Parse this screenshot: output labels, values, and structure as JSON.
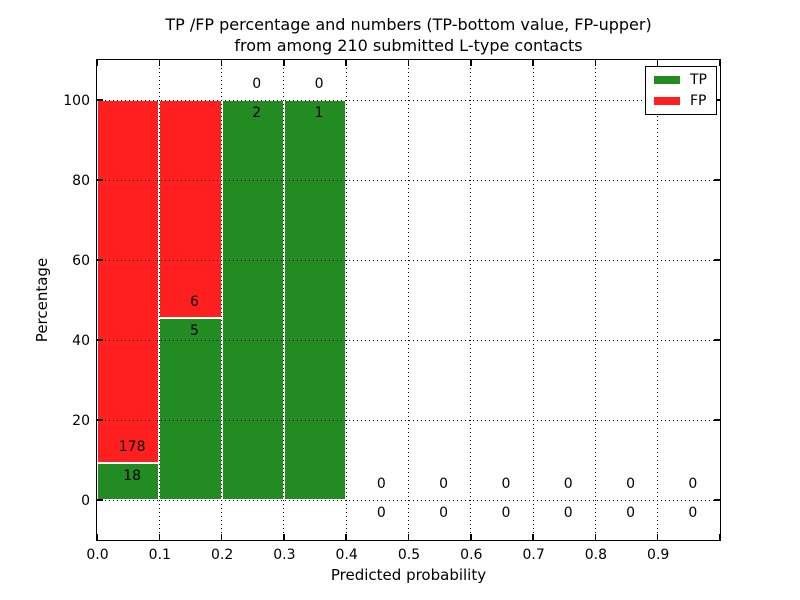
{
  "title": {
    "line1": "TP /FP percentage and numbers (TP-bottom value, FP-upper)",
    "line2": "from among 210 submitted L-type contacts"
  },
  "axes": {
    "xlabel": "Predicted probability",
    "ylabel": "Percentage"
  },
  "legend": {
    "position": "upper right",
    "entries": [
      {
        "label": "TP",
        "color": "#228b22"
      },
      {
        "label": "FP",
        "color": "#ff1f1f"
      }
    ]
  },
  "colors": {
    "tp": "#228b22",
    "fp": "#ff1f1f",
    "bar_edge": "#ffffff",
    "grid": "#000000",
    "background": "#ffffff"
  },
  "chart_data": {
    "type": "bar",
    "stacked": true,
    "title": "TP /FP percentage and numbers (TP-bottom value, FP-upper) from among 210 submitted L-type contacts",
    "xlabel": "Predicted probability",
    "ylabel": "Percentage",
    "xlim": [
      0.0,
      1.0
    ],
    "ylim": [
      -10,
      110
    ],
    "grid": true,
    "legend_position": "upper right",
    "x_tick_values": [
      0.0,
      0.1,
      0.2,
      0.3,
      0.4,
      0.5,
      0.6,
      0.7,
      0.8,
      0.9
    ],
    "x_tick_labels": [
      "0.0",
      "0.1",
      "0.2",
      "0.3",
      "0.4",
      "0.5",
      "0.6",
      "0.7",
      "0.8",
      "0.9"
    ],
    "y_tick_values": [
      0,
      20,
      40,
      60,
      80,
      100
    ],
    "y_tick_labels": [
      "0",
      "20",
      "40",
      "60",
      "80",
      "100"
    ],
    "bin_width": 0.1,
    "bins": [
      {
        "range": [
          0.0,
          0.1
        ],
        "tp": 18,
        "fp": 178,
        "tp_pct": 9.18,
        "fp_pct": 90.82
      },
      {
        "range": [
          0.1,
          0.2
        ],
        "tp": 5,
        "fp": 6,
        "tp_pct": 45.45,
        "fp_pct": 54.55
      },
      {
        "range": [
          0.2,
          0.3
        ],
        "tp": 2,
        "fp": 0,
        "tp_pct": 100,
        "fp_pct": 0
      },
      {
        "range": [
          0.3,
          0.4
        ],
        "tp": 1,
        "fp": 0,
        "tp_pct": 100,
        "fp_pct": 0
      },
      {
        "range": [
          0.4,
          0.5
        ],
        "tp": 0,
        "fp": 0,
        "tp_pct": 0,
        "fp_pct": 0
      },
      {
        "range": [
          0.5,
          0.6
        ],
        "tp": 0,
        "fp": 0,
        "tp_pct": 0,
        "fp_pct": 0
      },
      {
        "range": [
          0.6,
          0.7
        ],
        "tp": 0,
        "fp": 0,
        "tp_pct": 0,
        "fp_pct": 0
      },
      {
        "range": [
          0.7,
          0.8
        ],
        "tp": 0,
        "fp": 0,
        "tp_pct": 0,
        "fp_pct": 0
      },
      {
        "range": [
          0.8,
          0.9
        ],
        "tp": 0,
        "fp": 0,
        "tp_pct": 0,
        "fp_pct": 0
      },
      {
        "range": [
          0.9,
          1.0
        ],
        "tp": 0,
        "fp": 0,
        "tp_pct": 0,
        "fp_pct": 0
      }
    ],
    "series": [
      {
        "name": "TP",
        "color": "#228b22",
        "counts": [
          18,
          5,
          2,
          1,
          0,
          0,
          0,
          0,
          0,
          0
        ]
      },
      {
        "name": "FP",
        "color": "#ff1f1f",
        "counts": [
          178,
          6,
          0,
          0,
          0,
          0,
          0,
          0,
          0,
          0
        ]
      }
    ]
  }
}
